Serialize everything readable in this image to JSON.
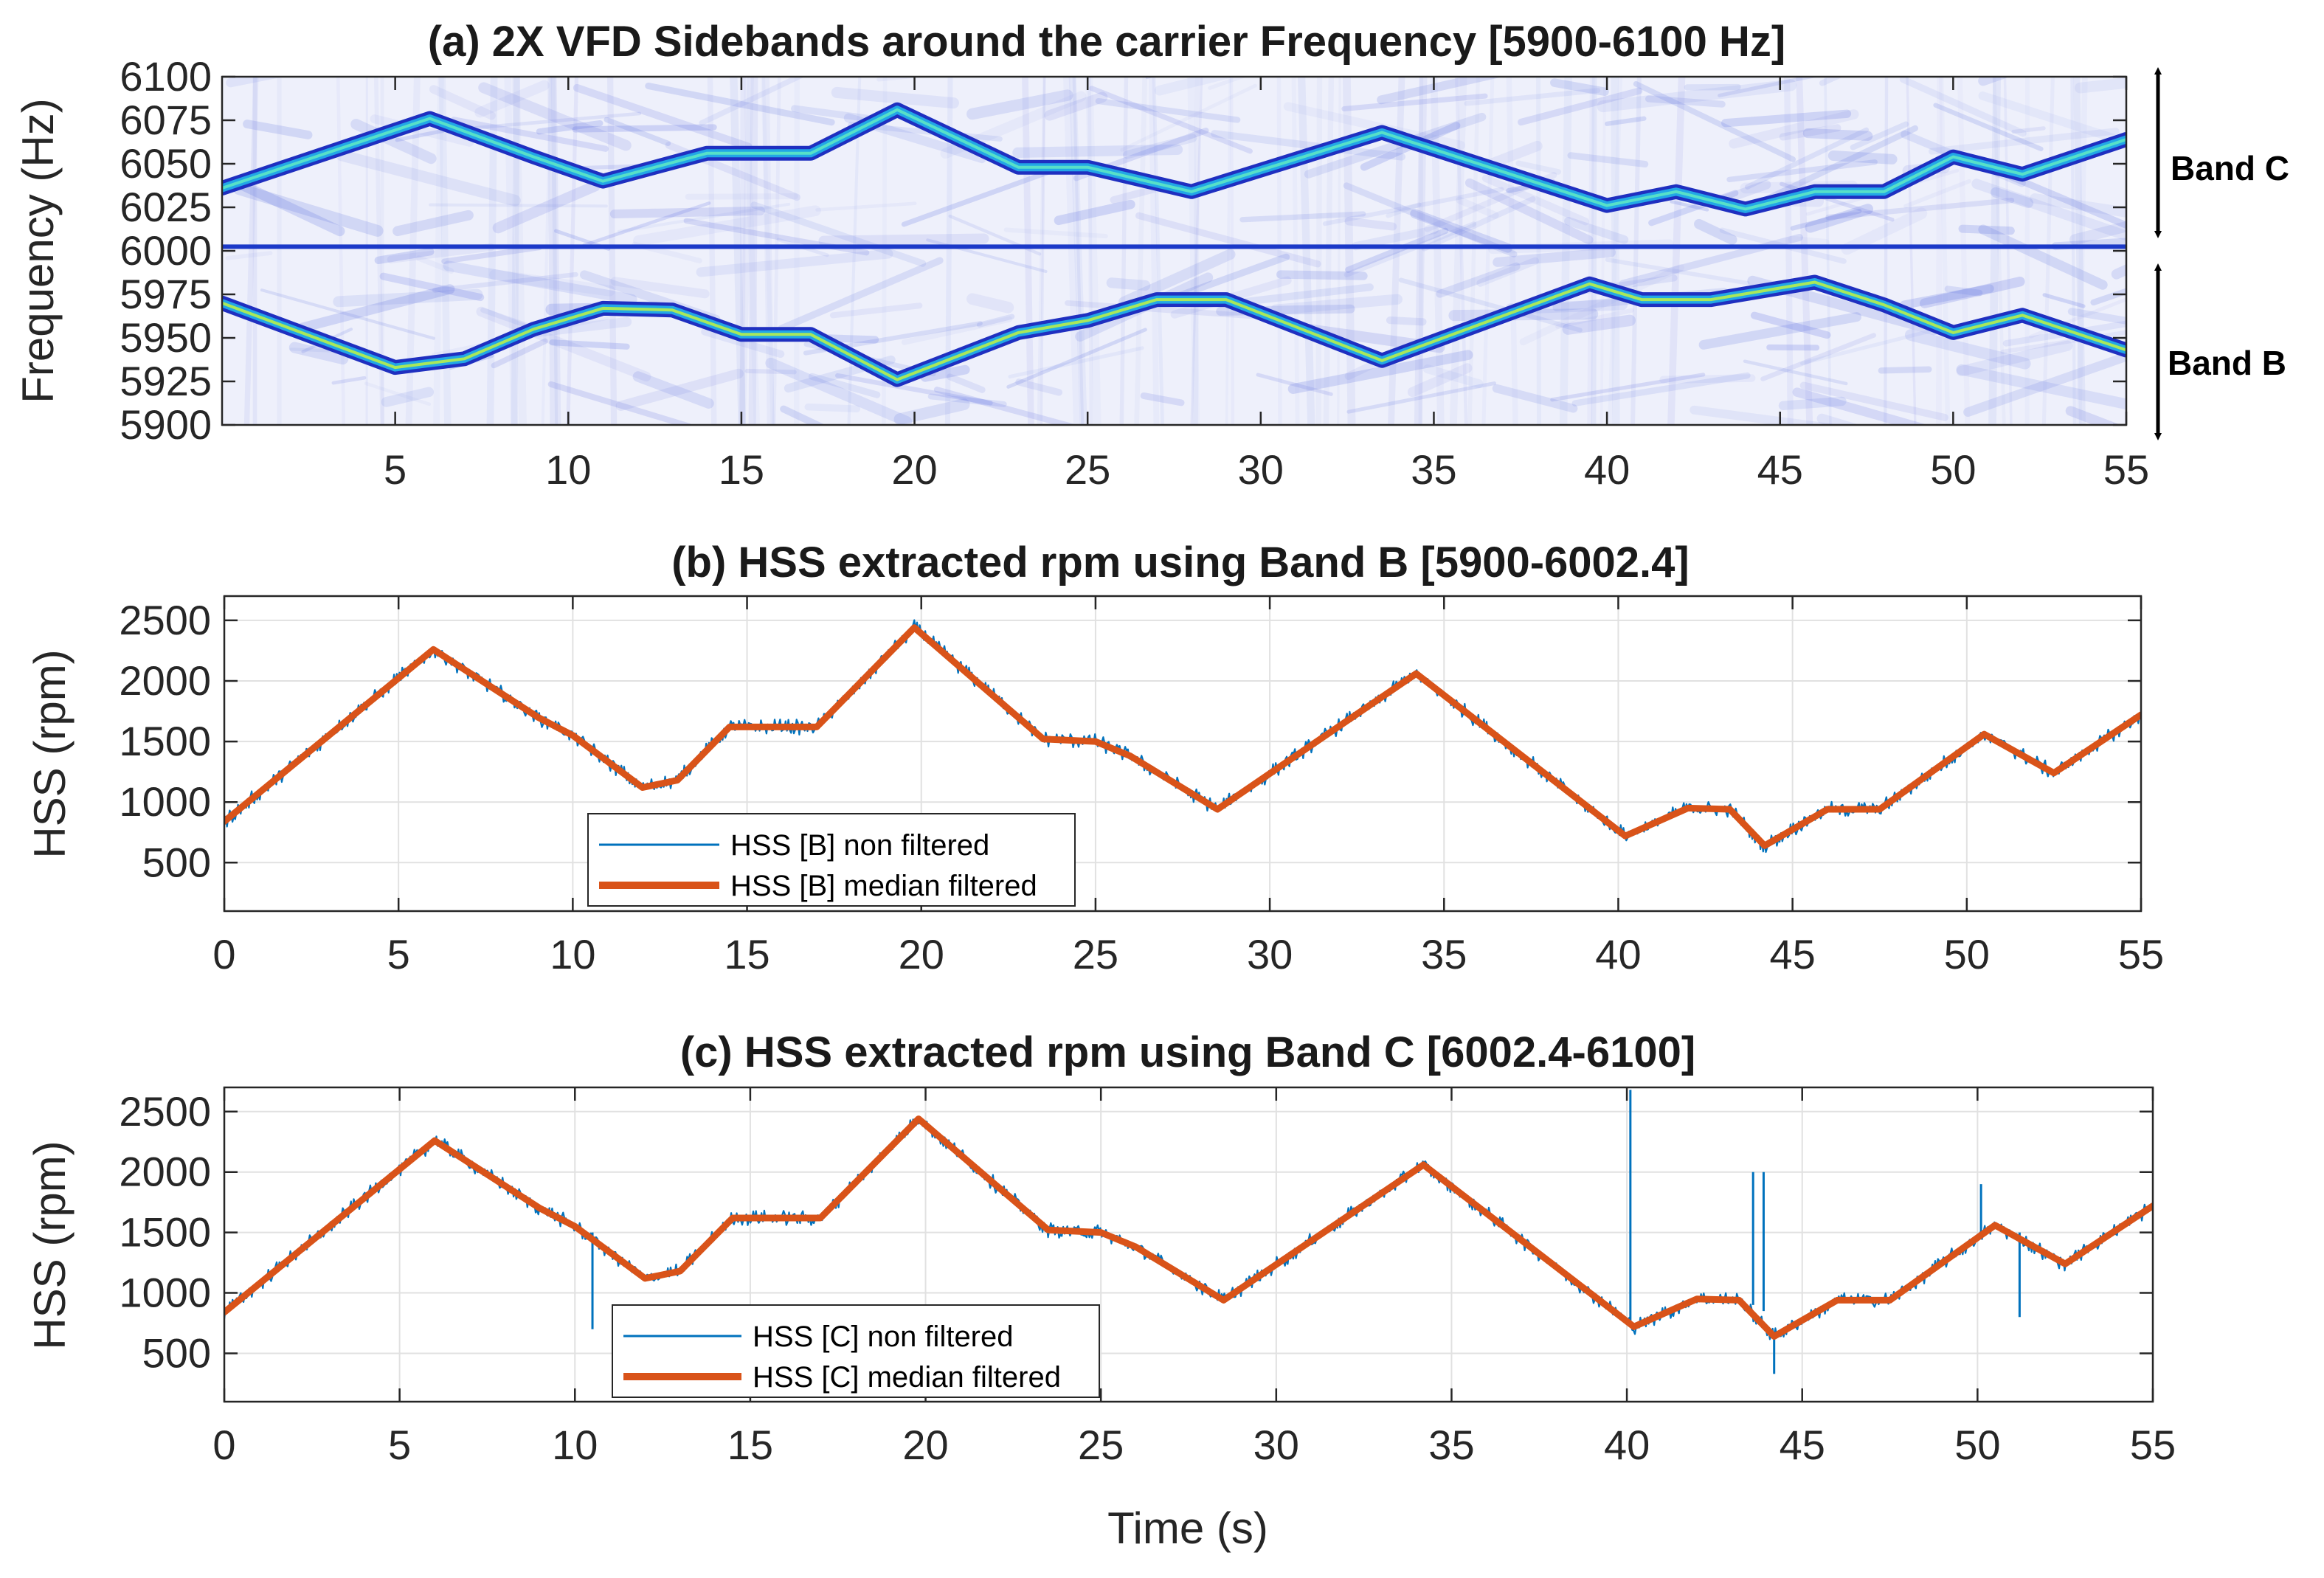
{
  "colors": {
    "raw": "#0072BD",
    "filtered": "#D95319",
    "spectrogram_bg": "#eef0fb",
    "spectrogram_line": "#1f3fd6",
    "grid": "#e1e1e1",
    "axis": "#262626"
  },
  "chart_data": [
    {
      "type": "heatmap",
      "title": "(a) 2X VFD Sidebands around the carrier Frequency [5900-6100 Hz]",
      "xlabel": "",
      "ylabel": "Frequency (Hz)",
      "xlim": [
        0,
        55
      ],
      "ylim": [
        5900,
        6100
      ],
      "xticks": [
        5,
        10,
        15,
        20,
        25,
        30,
        35,
        40,
        45,
        50,
        55
      ],
      "yticks": [
        5900,
        5925,
        5950,
        5975,
        6000,
        6025,
        6050,
        6075,
        6100
      ],
      "carrier_hz": 6002.4,
      "band_c": {
        "label": "Band C",
        "t": [
          0,
          6,
          9,
          11,
          14,
          17,
          19.5,
          23,
          25,
          28,
          33.5,
          40,
          42,
          44,
          46,
          48,
          50,
          52,
          55
        ],
        "f": [
          6036,
          6076,
          6054,
          6040,
          6056,
          6056,
          6081,
          6048,
          6048,
          6034,
          6068,
          6026,
          6034,
          6024,
          6034,
          6034,
          6054,
          6044,
          6064
        ]
      },
      "band_b": {
        "label": "Band B",
        "t": [
          0,
          5,
          7,
          9,
          11,
          13,
          15,
          17,
          19.5,
          23,
          25,
          27,
          29,
          33.5,
          39.5,
          41,
          43,
          46,
          48,
          50,
          52,
          55
        ],
        "f": [
          5970,
          5933,
          5938,
          5955,
          5967,
          5966,
          5952,
          5952,
          5926,
          5953,
          5960,
          5972,
          5972,
          5937,
          5981,
          5972,
          5972,
          5982,
          5969,
          5953,
          5963,
          5943
        ]
      }
    },
    {
      "type": "line",
      "title": "(b) HSS extracted rpm using Band B [5900-6002.4]",
      "xlabel": "",
      "ylabel": "HSS (rpm)",
      "xlim": [
        0,
        55
      ],
      "ylim": [
        100,
        2700
      ],
      "xticks": [
        0,
        5,
        10,
        15,
        20,
        25,
        30,
        35,
        40,
        45,
        50,
        55
      ],
      "yticks": [
        500,
        1000,
        1500,
        2000,
        2500
      ],
      "x": [
        0,
        6,
        9,
        10,
        12,
        13,
        14.5,
        17,
        19.8,
        23.5,
        25,
        26,
        28.5,
        34.2,
        40.2,
        42,
        43.2,
        44.2,
        46,
        47.5,
        50.5,
        52.5,
        55
      ],
      "series": [
        {
          "name": "HSS [B] non filtered",
          "values": [
            840,
            2260,
            1700,
            1550,
            1120,
            1180,
            1620,
            1620,
            2440,
            1520,
            1500,
            1380,
            940,
            2060,
            720,
            950,
            940,
            640,
            940,
            940,
            1560,
            1240,
            1720
          ]
        },
        {
          "name": "HSS [B] median filtered",
          "values": [
            840,
            2260,
            1700,
            1550,
            1120,
            1180,
            1620,
            1620,
            2440,
            1520,
            1500,
            1380,
            940,
            2060,
            720,
            950,
            940,
            640,
            940,
            940,
            1560,
            1240,
            1720
          ]
        }
      ]
    },
    {
      "type": "line",
      "title": "(c) HSS extracted rpm using Band C [6002.4-6100]",
      "xlabel": "Time (s)",
      "ylabel": "HSS (rpm)",
      "xlim": [
        0,
        55
      ],
      "ylim": [
        100,
        2700
      ],
      "xticks": [
        0,
        5,
        10,
        15,
        20,
        25,
        30,
        35,
        40,
        45,
        50,
        55
      ],
      "yticks": [
        500,
        1000,
        1500,
        2000,
        2500
      ],
      "x": [
        0,
        6,
        9,
        10,
        12,
        13,
        14.5,
        17,
        19.8,
        23.5,
        25,
        26,
        28.5,
        34.2,
        40.2,
        42,
        43.2,
        44.2,
        46,
        47.5,
        50.5,
        52.5,
        55
      ],
      "series": [
        {
          "name": "HSS [C] non filtered",
          "values": [
            840,
            2260,
            1700,
            1550,
            1120,
            1180,
            1620,
            1620,
            2440,
            1520,
            1500,
            1380,
            940,
            2060,
            720,
            950,
            940,
            640,
            940,
            940,
            1560,
            1240,
            1720
          ]
        },
        {
          "name": "HSS [C] median filtered",
          "values": [
            840,
            2260,
            1700,
            1550,
            1120,
            1180,
            1620,
            1620,
            2440,
            1520,
            1500,
            1380,
            940,
            2060,
            720,
            950,
            940,
            640,
            940,
            940,
            1560,
            1240,
            1720
          ]
        }
      ]
    }
  ]
}
